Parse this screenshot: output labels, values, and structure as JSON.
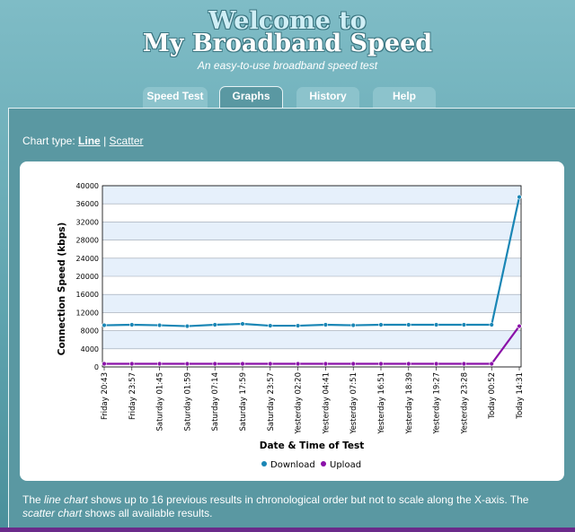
{
  "header": {
    "welcome": "Welcome to",
    "brand": "My Broadband Speed",
    "tagline": "An easy-to-use broadband speed test"
  },
  "tabs": [
    {
      "label": "Speed Test",
      "active": false
    },
    {
      "label": "Graphs",
      "active": true
    },
    {
      "label": "History",
      "active": false
    },
    {
      "label": "Help",
      "active": false
    }
  ],
  "chart_type": {
    "prefix": "Chart type:",
    "line": "Line",
    "separator": "|",
    "scatter": "Scatter"
  },
  "footnote": {
    "t1": "The ",
    "e1": "line chart",
    "t2": " shows up to 16 previous results in chronological order but not to scale along the X-axis. The ",
    "e2": "scatter chart",
    "t3": " shows all available results."
  },
  "colors": {
    "download": "#1a86b5",
    "upload": "#8a11a8",
    "band": "#e6f0fb"
  },
  "chart_data": {
    "type": "line",
    "xlabel": "Date & Time of Test",
    "ylabel": "Connection Speed (kbps)",
    "ylim": [
      0,
      40000
    ],
    "yticks": [
      0,
      4000,
      8000,
      12000,
      16000,
      20000,
      24000,
      28000,
      32000,
      36000,
      40000
    ],
    "categories": [
      "Friday 20:43",
      "Friday 23:57",
      "Saturday 01:45",
      "Saturday 01:59",
      "Saturday 07:14",
      "Saturday 17:59",
      "Saturday 23:57",
      "Yesterday 02:20",
      "Yesterday 04:41",
      "Yesterday 07:51",
      "Yesterday 16:51",
      "Yesterday 18:39",
      "Yesterday 19:27",
      "Yesterday 23:28",
      "Today 00:52",
      "Today 14:31"
    ],
    "series": [
      {
        "name": "Download",
        "values": [
          9200,
          9300,
          9200,
          9000,
          9300,
          9500,
          9100,
          9100,
          9300,
          9200,
          9300,
          9300,
          9300,
          9300,
          9300,
          37500
        ]
      },
      {
        "name": "Upload",
        "values": [
          700,
          700,
          700,
          700,
          700,
          700,
          700,
          700,
          700,
          700,
          700,
          700,
          700,
          700,
          700,
          9000
        ]
      }
    ],
    "grid": true,
    "legend": "bottom"
  }
}
